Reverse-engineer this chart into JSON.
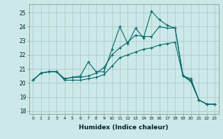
{
  "xlabel": "Humidex (Indice chaleur)",
  "bg_color": "#cde8e8",
  "grid_color": "#aacccc",
  "line_color": "#006868",
  "xlim": [
    -0.5,
    23.5
  ],
  "ylim": [
    17.8,
    25.6
  ],
  "yticks": [
    18,
    19,
    20,
    21,
    22,
    23,
    24,
    25
  ],
  "xticks": [
    0,
    1,
    2,
    3,
    4,
    5,
    6,
    7,
    8,
    9,
    10,
    11,
    12,
    13,
    14,
    15,
    16,
    17,
    18,
    19,
    20,
    21,
    22,
    23
  ],
  "s1_x": [
    0,
    1,
    2,
    3,
    4,
    5,
    6,
    7,
    8,
    9,
    10,
    11,
    12,
    13,
    14,
    15,
    16,
    17,
    18,
    19,
    20,
    21,
    22,
    23
  ],
  "s1_y": [
    20.2,
    20.7,
    20.8,
    20.8,
    20.3,
    20.4,
    20.5,
    21.5,
    20.8,
    20.8,
    22.4,
    24.0,
    22.8,
    23.9,
    23.2,
    25.1,
    24.5,
    24.1,
    23.9,
    20.5,
    20.1,
    18.8,
    18.5,
    18.5
  ],
  "s2_x": [
    0,
    1,
    2,
    3,
    4,
    5,
    6,
    7,
    8,
    9,
    10,
    11,
    12,
    13,
    14,
    15,
    16,
    17,
    18,
    19,
    20,
    21,
    22,
    23
  ],
  "s2_y": [
    20.2,
    20.7,
    20.8,
    20.8,
    20.3,
    20.4,
    20.4,
    20.5,
    20.7,
    21.1,
    22.0,
    22.5,
    22.9,
    23.4,
    23.3,
    23.3,
    24.0,
    23.9,
    23.9,
    20.5,
    20.2,
    18.8,
    18.5,
    18.5
  ],
  "s3_x": [
    0,
    1,
    2,
    3,
    4,
    5,
    6,
    7,
    8,
    9,
    10,
    11,
    12,
    13,
    14,
    15,
    16,
    17,
    18,
    19,
    20,
    21,
    22,
    23
  ],
  "s3_y": [
    20.2,
    20.7,
    20.8,
    20.8,
    20.2,
    20.2,
    20.2,
    20.3,
    20.4,
    20.6,
    21.2,
    21.8,
    22.0,
    22.2,
    22.4,
    22.5,
    22.7,
    22.8,
    22.9,
    20.5,
    20.3,
    18.8,
    18.5,
    18.5
  ]
}
